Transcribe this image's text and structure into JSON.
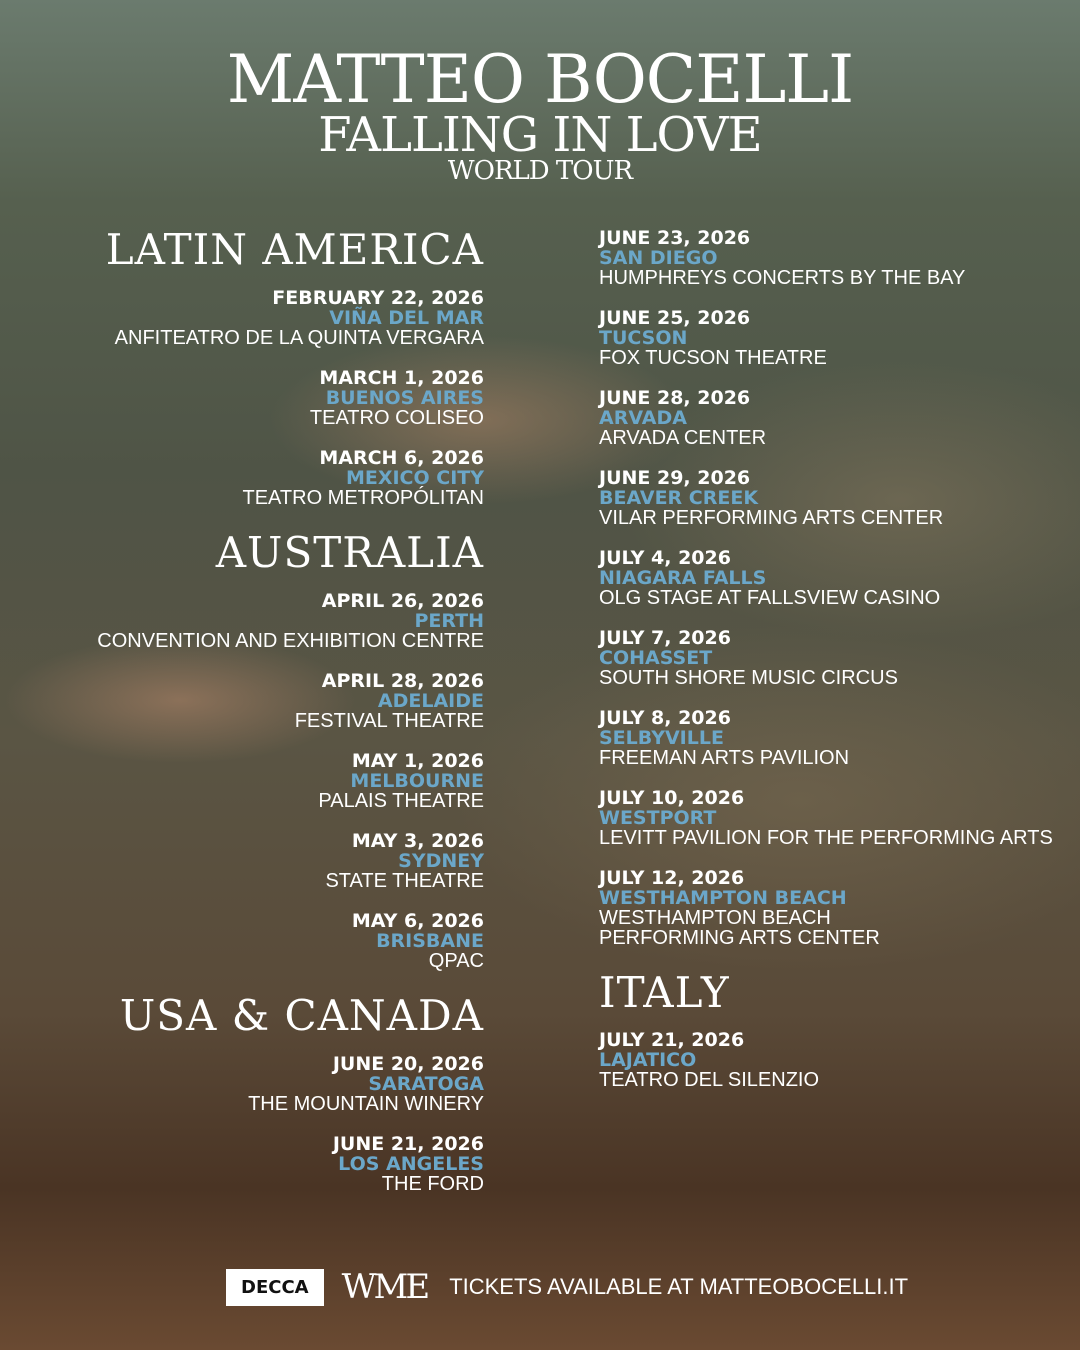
{
  "header": {
    "artist": "MATTEO BOCELLI",
    "tour": "FALLING IN LOVE",
    "subtitle": "WORLD TOUR"
  },
  "colors": {
    "city": "#6ba7c9"
  },
  "regions": {
    "latin_america": {
      "name": "LATIN AMERICA",
      "shows": [
        {
          "date": "FEBRUARY 22, 2026",
          "city": "VIÑA DEL MAR",
          "venue": "ANFITEATRO DE LA QUINTA VERGARA"
        },
        {
          "date": "MARCH 1, 2026",
          "city": "BUENOS AIRES",
          "venue": "TEATRO COLISEO"
        },
        {
          "date": "MARCH 6, 2026",
          "city": "MEXICO CITY",
          "venue": "TEATRO METROPÓLITAN"
        }
      ]
    },
    "australia": {
      "name": "AUSTRALIA",
      "shows": [
        {
          "date": "APRIL 26, 2026",
          "city": "PERTH",
          "venue": "CONVENTION AND EXHIBITION CENTRE"
        },
        {
          "date": "APRIL 28, 2026",
          "city": "ADELAIDE",
          "venue": "FESTIVAL THEATRE"
        },
        {
          "date": "MAY 1, 2026",
          "city": "MELBOURNE",
          "venue": "PALAIS THEATRE"
        },
        {
          "date": "MAY 3, 2026",
          "city": "SYDNEY",
          "venue": "STATE THEATRE"
        },
        {
          "date": "MAY 6, 2026",
          "city": "BRISBANE",
          "venue": "QPAC"
        }
      ]
    },
    "usa_canada": {
      "name": "USA & CANADA",
      "shows": [
        {
          "date": "JUNE 20, 2026",
          "city": "SARATOGA",
          "venue": "THE MOUNTAIN WINERY"
        },
        {
          "date": "JUNE 21, 2026",
          "city": "LOS ANGELES",
          "venue": "THE FORD"
        },
        {
          "date": "JUNE 23, 2026",
          "city": "SAN DIEGO",
          "venue": "HUMPHREYS CONCERTS BY THE BAY"
        },
        {
          "date": "JUNE 25, 2026",
          "city": "TUCSON",
          "venue": "FOX TUCSON THEATRE"
        },
        {
          "date": "JUNE 28, 2026",
          "city": "ARVADA",
          "venue": "ARVADA CENTER"
        },
        {
          "date": "JUNE 29, 2026",
          "city": "BEAVER CREEK",
          "venue": "VILAR PERFORMING ARTS CENTER"
        },
        {
          "date": "JULY 4, 2026",
          "city": "NIAGARA FALLS",
          "venue": "OLG STAGE AT FALLSVIEW CASINO"
        },
        {
          "date": "JULY 7, 2026",
          "city": "COHASSET",
          "venue": "SOUTH SHORE MUSIC CIRCUS"
        },
        {
          "date": "JULY 8, 2026",
          "city": "SELBYVILLE",
          "venue": "FREEMAN ARTS PAVILION"
        },
        {
          "date": "JULY 10, 2026",
          "city": "WESTPORT",
          "venue": "LEVITT PAVILION FOR THE PERFORMING ARTS"
        },
        {
          "date": "JULY 12, 2026",
          "city": "WESTHAMPTON BEACH",
          "venue": "WESTHAMPTON BEACH",
          "venue2": "PERFORMING ARTS CENTER"
        }
      ]
    },
    "italy": {
      "name": "ITALY",
      "shows": [
        {
          "date": "JULY 21, 2026",
          "city": "LAJATICO",
          "venue": "TEATRO DEL SILENZIO"
        }
      ]
    }
  },
  "footer": {
    "label_logo": "DECCA",
    "agency_logo": "WME",
    "tickets": "TICKETS AVAILABLE AT MATTEOBOCELLI.IT"
  }
}
